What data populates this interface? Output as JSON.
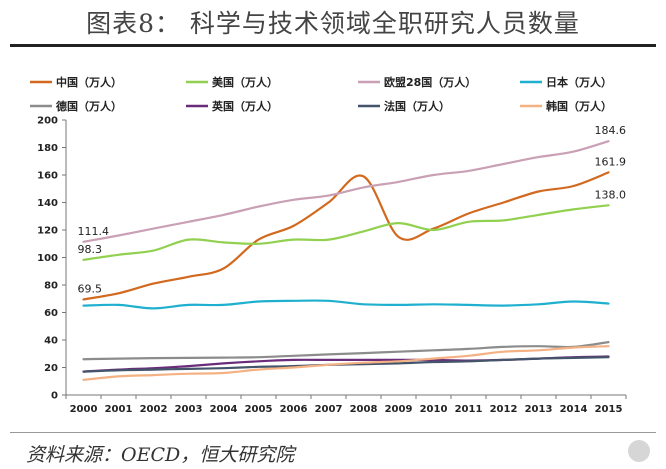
{
  "title": "图表8：  科学与技术领域全职研究人员数量",
  "source": "资料来源：OECD，恒大研究院",
  "chart_data": {
    "type": "line",
    "title": "",
    "xlabel": "",
    "ylabel": "",
    "ylim": [
      0,
      200
    ],
    "yticks": [
      0,
      20,
      40,
      60,
      80,
      100,
      120,
      140,
      160,
      180,
      200
    ],
    "grid": false,
    "legend_position": "top",
    "categories": [
      "2000",
      "2001",
      "2002",
      "2003",
      "2004",
      "2005",
      "2006",
      "2007",
      "2008",
      "2009",
      "2010",
      "2011",
      "2012",
      "2013",
      "2014",
      "2015"
    ],
    "series": [
      {
        "name": "中国（万人）",
        "color": "#d2691e",
        "values": [
          69.5,
          74,
          81,
          86,
          92,
          113,
          123,
          140,
          159,
          115,
          121,
          132,
          140,
          148,
          152,
          161.9
        ],
        "labels": [
          {
            "index": 0,
            "text": "69.5"
          },
          {
            "index": 15,
            "text": "161.9"
          }
        ]
      },
      {
        "name": "美国（万人）",
        "color": "#92d050",
        "values": [
          98.3,
          102,
          105,
          113,
          111,
          110,
          113,
          113,
          119,
          125,
          120,
          126,
          127,
          131,
          135,
          138.0
        ],
        "labels": [
          {
            "index": 0,
            "text": "98.3"
          },
          {
            "index": 15,
            "text": "138.0"
          }
        ]
      },
      {
        "name": "欧盟28国（万人）",
        "color": "#c9a0b5",
        "values": [
          111.4,
          116,
          121,
          126,
          131,
          137,
          142,
          145,
          151,
          155,
          160,
          163,
          168,
          173,
          177,
          184.6
        ],
        "labels": [
          {
            "index": 0,
            "text": "111.4"
          },
          {
            "index": 15,
            "text": "184.6"
          }
        ]
      },
      {
        "name": "日本（万人）",
        "color": "#1fb0cf",
        "values": [
          65,
          65.5,
          63,
          65.5,
          65.5,
          68,
          68.5,
          68.5,
          66,
          65.5,
          66,
          65.5,
          65,
          66,
          68,
          66.5
        ],
        "labels": []
      },
      {
        "name": "德国（万人）",
        "color": "#8c8c8c",
        "values": [
          26,
          26.5,
          26.8,
          27,
          27.2,
          27.5,
          28.5,
          29.5,
          30.5,
          31.5,
          32.5,
          33.5,
          35,
          35.5,
          35,
          38.5
        ],
        "labels": []
      },
      {
        "name": "英国（万人）",
        "color": "#6a2c7a",
        "values": [
          17,
          18.5,
          19.5,
          21,
          23,
          24.5,
          25.5,
          25.5,
          25.5,
          25.5,
          25.5,
          25,
          25.5,
          26.5,
          27.5,
          28
        ],
        "labels": []
      },
      {
        "name": "法国（万人）",
        "color": "#44546a",
        "values": [
          17,
          18,
          18.5,
          19,
          19.5,
          20.5,
          21,
          22,
          22.5,
          23,
          24,
          24.5,
          25.5,
          26.5,
          27,
          27.5
        ],
        "labels": []
      },
      {
        "name": "韩国（万人）",
        "color": "#f4b183",
        "values": [
          11,
          13.5,
          14.5,
          15.5,
          16,
          18.5,
          20,
          22,
          23.5,
          24.5,
          26.5,
          28.5,
          31.5,
          32.5,
          34.5,
          35.5
        ],
        "labels": []
      }
    ]
  }
}
